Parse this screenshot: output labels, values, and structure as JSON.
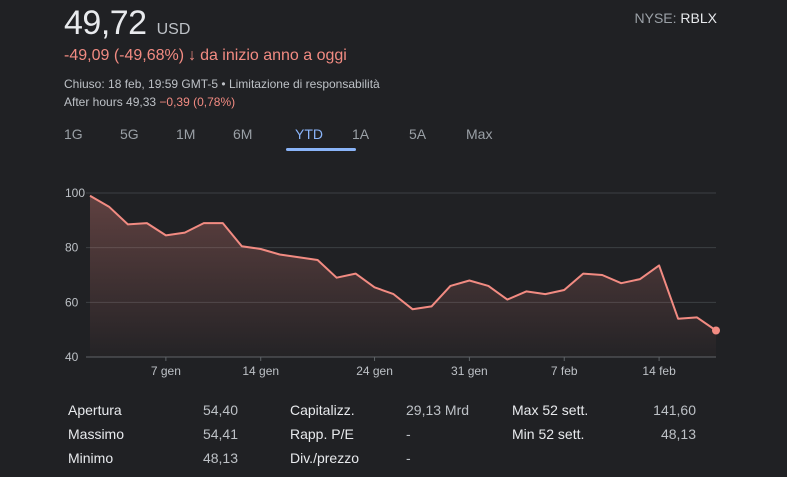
{
  "header": {
    "price": "49,72",
    "currency": "USD",
    "exchange_prefix": "NYSE:",
    "ticker": "RBLX",
    "change": "-49,09 (-49,68%)",
    "change_arrow": "↓",
    "change_period": "da inizio anno a oggi",
    "closed_text": "Chiuso: 18 feb, 19:59 GMT-5 • Limitazione di responsabilità",
    "after_label": "After hours 49,33",
    "after_change": "−0,39 (0,78%)"
  },
  "tabs": [
    {
      "label": "1G",
      "active": false
    },
    {
      "label": "5G",
      "active": false
    },
    {
      "label": "1M",
      "active": false
    },
    {
      "label": "6M",
      "active": false
    },
    {
      "label": "YTD",
      "active": true
    },
    {
      "label": "1A",
      "active": false
    },
    {
      "label": "5A",
      "active": false
    },
    {
      "label": "Max",
      "active": false
    }
  ],
  "colors": {
    "line": "#f28b82",
    "accent": "#8ab4f8",
    "background": "#202124"
  },
  "chart_data": {
    "type": "area",
    "ylim": [
      40,
      100
    ],
    "yticks": [
      40,
      60,
      80,
      100
    ],
    "xtick_labels": [
      "7 gen",
      "14 gen",
      "24 gen",
      "31 gen",
      "7 feb",
      "14 feb"
    ],
    "xtick_index": [
      4,
      9,
      15,
      20,
      25,
      30
    ],
    "values": [
      99,
      95,
      88.5,
      89,
      84.5,
      85.5,
      89,
      89,
      80.5,
      79.5,
      77.5,
      76.5,
      75.5,
      69,
      70.5,
      65.5,
      63,
      57.5,
      58.5,
      66,
      68,
      66,
      61,
      64,
      63,
      64.5,
      70.5,
      70,
      67,
      68.5,
      73.5,
      54,
      54.5,
      49.7
    ]
  },
  "stats": [
    {
      "label": "Apertura",
      "value": "54,40"
    },
    {
      "label": "Massimo",
      "value": "54,41"
    },
    {
      "label": "Minimo",
      "value": "48,13"
    },
    {
      "label": "Capitalizz.",
      "value": "29,13 Mrd"
    },
    {
      "label": "Rapp. P/E",
      "value": "-"
    },
    {
      "label": "Div./prezzo",
      "value": "-"
    },
    {
      "label": "Max 52 sett.",
      "value": "141,60"
    },
    {
      "label": "Min 52 sett.",
      "value": "48,13"
    }
  ]
}
